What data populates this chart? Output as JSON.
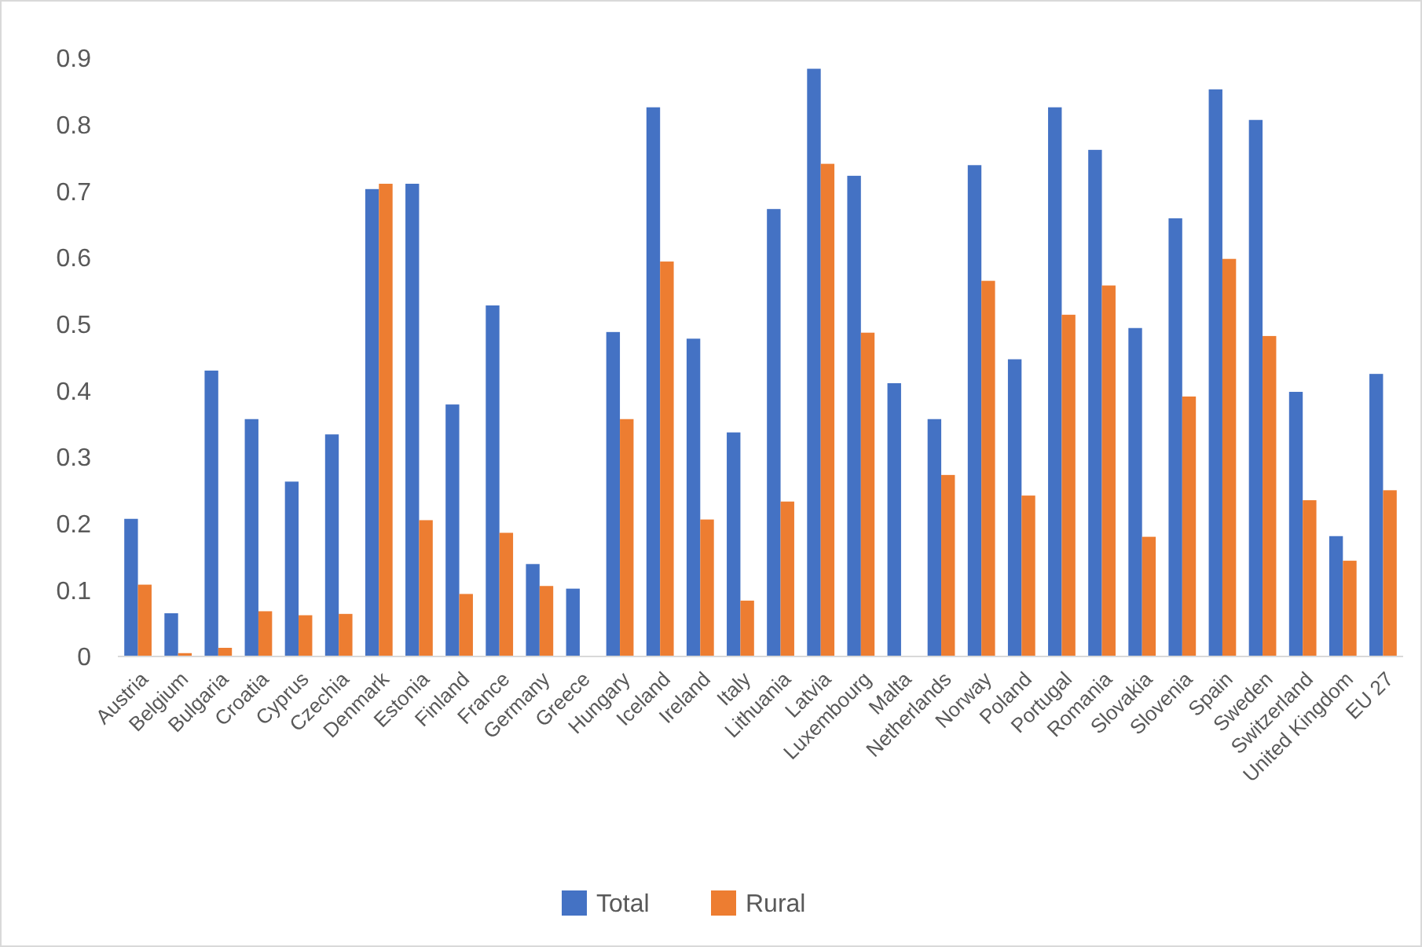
{
  "chart_data": {
    "type": "bar",
    "categories": [
      "Austria",
      "Belgium",
      "Bulgaria",
      "Croatia",
      "Cyprus",
      "Czechia",
      "Denmark",
      "Estonia",
      "Finland",
      "France",
      "Germany",
      "Greece",
      "Hungary",
      "Iceland",
      "Ireland",
      "Italy",
      "Lithuania",
      "Latvia",
      "Luxembourg",
      "Malta",
      "Netherlands",
      "Norway",
      "Poland",
      "Portugal",
      "Romania",
      "Slovakia",
      "Slovenia",
      "Spain",
      "Sweden",
      "Switzerland",
      "United Kingdom",
      "EU 27"
    ],
    "series": [
      {
        "name": "Total",
        "color": "#4472c4",
        "values": [
          0.207,
          0.065,
          0.43,
          0.357,
          0.263,
          0.334,
          0.703,
          0.711,
          0.379,
          0.528,
          0.139,
          0.102,
          0.488,
          0.826,
          0.478,
          0.337,
          0.673,
          0.884,
          0.723,
          0.411,
          0.357,
          0.739,
          0.447,
          0.826,
          0.762,
          0.494,
          0.659,
          0.853,
          0.807,
          0.398,
          0.181,
          0.425
        ]
      },
      {
        "name": "Rural",
        "color": "#ed7d31",
        "values": [
          0.108,
          0.005,
          0.013,
          0.068,
          0.062,
          0.064,
          0.711,
          0.205,
          0.094,
          0.186,
          0.106,
          null,
          0.357,
          0.594,
          0.206,
          0.084,
          0.233,
          0.741,
          0.487,
          null,
          0.273,
          0.565,
          0.242,
          0.514,
          0.558,
          0.18,
          0.391,
          0.598,
          0.482,
          0.235,
          0.144,
          0.25
        ]
      }
    ],
    "ylim": [
      0,
      0.9
    ],
    "yticks": [
      0,
      {
        "value": 0.1,
        "label": "0.1"
      },
      {
        "value": 0.2,
        "label": "0.2"
      },
      {
        "value": 0.3,
        "label": "0.3"
      },
      {
        "value": 0.4,
        "label": "0.4"
      },
      {
        "value": 0.5,
        "label": "0.5"
      },
      {
        "value": 0.6,
        "label": "0.6"
      },
      {
        "value": 0.7,
        "label": "0.7"
      },
      {
        "value": 0.8,
        "label": "0.8"
      },
      {
        "value": 0.9,
        "label": "0.9"
      }
    ],
    "grid": false,
    "legend": "bottom"
  }
}
